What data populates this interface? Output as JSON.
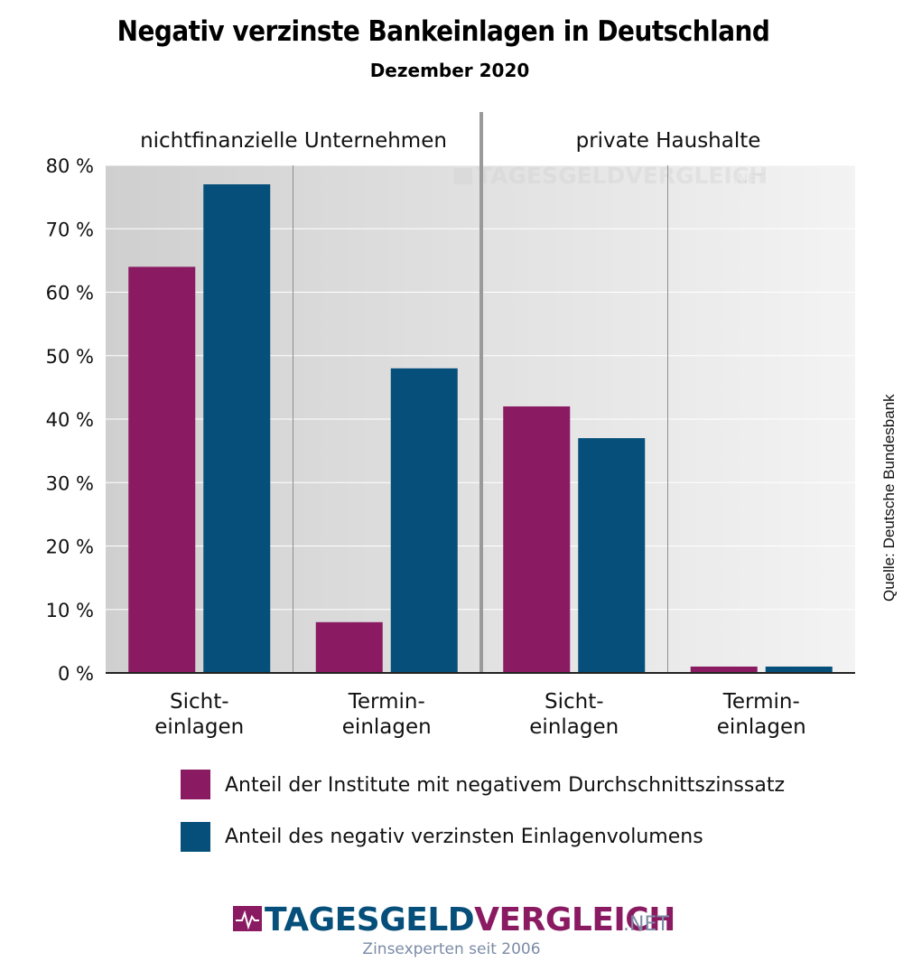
{
  "chart_data": {
    "type": "bar",
    "title": "Negativ verzinste Bankeinlagen in Deutschland",
    "subtitle": "Dezember 2020",
    "groups": [
      {
        "label": "nichtfinanzielle Unternehmen",
        "categories": [
          [
            "Sicht-",
            "einlagen"
          ],
          [
            "Termin-",
            "einlagen"
          ]
        ]
      },
      {
        "label": "private Haushalte",
        "categories": [
          [
            "Sicht-",
            "einlagen"
          ],
          [
            "Termin-",
            "einlagen"
          ]
        ]
      }
    ],
    "series": [
      {
        "name": "Anteil der Institute mit negativem Durchschnittszinssatz",
        "color": "#8a1a61",
        "values": [
          64,
          8,
          42,
          1
        ]
      },
      {
        "name": "Anteil des negativ verzinsten Einlagenvolumens",
        "color": "#054f7a",
        "values": [
          77,
          48,
          37,
          1
        ]
      }
    ],
    "ylim": [
      0,
      80
    ],
    "yticks": [
      0,
      10,
      20,
      30,
      40,
      50,
      60,
      70,
      80
    ],
    "ytick_suffix": " %",
    "grid": true,
    "legend_position": "bottom",
    "source": "Quelle: Deutsche Bundesbank"
  },
  "watermark": {
    "main": "TAGESGELDVERGLEICH",
    "suffix": ".NET"
  },
  "logo": {
    "part1": "TAGESGELD",
    "part2": "VERGLEICH",
    "suffix": ".NET",
    "tagline": "Zinsexperten seit 2006",
    "color1": "#054f7a",
    "color2": "#8a1a61",
    "icon": "heartbeat-icon"
  }
}
